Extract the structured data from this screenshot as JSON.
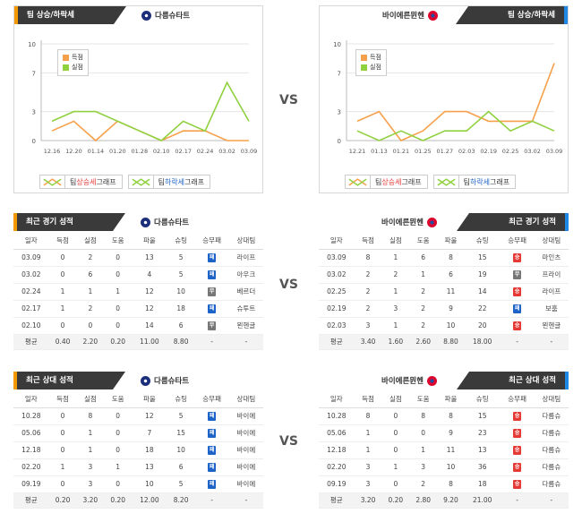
{
  "team_left": "다름슈타트",
  "team_right": "바이에른뮌헨",
  "vs_label": "VS",
  "sections": {
    "trend_title": "팀 상승/하락세",
    "recent_title": "최근 경기 성적",
    "h2h_title": "최근 상대 성적"
  },
  "legend": {
    "score": "득점",
    "conceded": "실점"
  },
  "bottom_legend": {
    "rise_prefix": "팀 ",
    "rise_word": "상승세",
    "rise_suffix": " 그래프",
    "fall_prefix": "팀 ",
    "fall_word": "하락세",
    "fall_suffix": " 그래프"
  },
  "colors": {
    "score": "#f7a04b",
    "conceded": "#8fd13f",
    "win": "#e53935",
    "draw": "#777777",
    "loss": "#1e63c7",
    "accent_left": "#f39800",
    "accent_right": "#1e88e5"
  },
  "table_headers": [
    "일자",
    "득점",
    "실점",
    "도움",
    "파울",
    "슈팅",
    "승무패",
    "상대팀"
  ],
  "chart_data": [
    {
      "type": "line",
      "x": [
        "12.16",
        "12.20",
        "01.14",
        "01.20",
        "01.28",
        "02.10",
        "02.17",
        "02.24",
        "03.02",
        "03.09"
      ],
      "ylim": [
        0,
        10
      ],
      "yticks": [
        0,
        3,
        7,
        10
      ],
      "series": [
        {
          "name": "득점",
          "values": [
            1,
            2,
            0,
            2,
            1,
            0,
            1,
            1,
            0,
            0
          ]
        },
        {
          "name": "실점",
          "values": [
            2,
            3,
            3,
            2,
            1,
            0,
            2,
            1,
            6,
            2
          ]
        }
      ]
    },
    {
      "type": "line",
      "x": [
        "12.21",
        "01.13",
        "01.21",
        "01.25",
        "01.27",
        "02.03",
        "02.19",
        "02.25",
        "03.02",
        "03.09"
      ],
      "ylim": [
        0,
        10
      ],
      "yticks": [
        0,
        3,
        7,
        10
      ],
      "series": [
        {
          "name": "득점",
          "values": [
            2,
            3,
            0,
            1,
            3,
            3,
            2,
            2,
            2,
            8
          ]
        },
        {
          "name": "실점",
          "values": [
            1,
            0,
            1,
            0,
            1,
            1,
            3,
            1,
            2,
            1
          ]
        }
      ]
    }
  ],
  "recent_left": {
    "rows": [
      {
        "date": "03.09",
        "gf": "0",
        "ga": "2",
        "ast": "0",
        "foul": "13",
        "shot": "5",
        "res": "L",
        "res_label": "패",
        "opp": "라이프"
      },
      {
        "date": "03.02",
        "gf": "0",
        "ga": "6",
        "ast": "0",
        "foul": "4",
        "shot": "5",
        "res": "L",
        "res_label": "패",
        "opp": "아우크"
      },
      {
        "date": "02.24",
        "gf": "1",
        "ga": "1",
        "ast": "1",
        "foul": "12",
        "shot": "10",
        "res": "D",
        "res_label": "무",
        "opp": "베르더"
      },
      {
        "date": "02.17",
        "gf": "1",
        "ga": "2",
        "ast": "0",
        "foul": "12",
        "shot": "18",
        "res": "L",
        "res_label": "패",
        "opp": "슈투트"
      },
      {
        "date": "02.10",
        "gf": "0",
        "ga": "0",
        "ast": "0",
        "foul": "14",
        "shot": "6",
        "res": "D",
        "res_label": "무",
        "opp": "묀헨글"
      }
    ],
    "avg": {
      "label": "평균",
      "gf": "0.40",
      "ga": "2.20",
      "ast": "0.20",
      "foul": "11.00",
      "shot": "8.80",
      "res": "-",
      "opp": "-"
    }
  },
  "recent_right": {
    "rows": [
      {
        "date": "03.09",
        "gf": "8",
        "ga": "1",
        "ast": "6",
        "foul": "8",
        "shot": "15",
        "res": "W",
        "res_label": "승",
        "opp": "마인츠"
      },
      {
        "date": "03.02",
        "gf": "2",
        "ga": "2",
        "ast": "1",
        "foul": "6",
        "shot": "19",
        "res": "D",
        "res_label": "무",
        "opp": "프라이"
      },
      {
        "date": "02.25",
        "gf": "2",
        "ga": "1",
        "ast": "2",
        "foul": "11",
        "shot": "14",
        "res": "W",
        "res_label": "승",
        "opp": "라이프"
      },
      {
        "date": "02.19",
        "gf": "2",
        "ga": "3",
        "ast": "2",
        "foul": "9",
        "shot": "22",
        "res": "L",
        "res_label": "패",
        "opp": "보훔"
      },
      {
        "date": "02.03",
        "gf": "3",
        "ga": "1",
        "ast": "2",
        "foul": "10",
        "shot": "20",
        "res": "W",
        "res_label": "승",
        "opp": "묀헨글"
      }
    ],
    "avg": {
      "label": "평균",
      "gf": "3.40",
      "ga": "1.60",
      "ast": "2.60",
      "foul": "8.80",
      "shot": "18.00",
      "res": "-",
      "opp": "-"
    }
  },
  "h2h_left": {
    "rows": [
      {
        "date": "10.28",
        "gf": "0",
        "ga": "8",
        "ast": "0",
        "foul": "12",
        "shot": "5",
        "res": "L",
        "res_label": "패",
        "opp": "바이에"
      },
      {
        "date": "05.06",
        "gf": "0",
        "ga": "1",
        "ast": "0",
        "foul": "7",
        "shot": "15",
        "res": "L",
        "res_label": "패",
        "opp": "바이에"
      },
      {
        "date": "12.18",
        "gf": "0",
        "ga": "1",
        "ast": "0",
        "foul": "18",
        "shot": "10",
        "res": "L",
        "res_label": "패",
        "opp": "바이에"
      },
      {
        "date": "02.20",
        "gf": "1",
        "ga": "3",
        "ast": "1",
        "foul": "13",
        "shot": "6",
        "res": "L",
        "res_label": "패",
        "opp": "바이에"
      },
      {
        "date": "09.19",
        "gf": "0",
        "ga": "3",
        "ast": "0",
        "foul": "10",
        "shot": "5",
        "res": "L",
        "res_label": "패",
        "opp": "바이에"
      }
    ],
    "avg": {
      "label": "평균",
      "gf": "0.20",
      "ga": "3.20",
      "ast": "0.20",
      "foul": "12.00",
      "shot": "8.20",
      "res": "-",
      "opp": "-"
    }
  },
  "h2h_right": {
    "rows": [
      {
        "date": "10.28",
        "gf": "8",
        "ga": "0",
        "ast": "8",
        "foul": "8",
        "shot": "15",
        "res": "W",
        "res_label": "승",
        "opp": "다름슈"
      },
      {
        "date": "05.06",
        "gf": "1",
        "ga": "0",
        "ast": "0",
        "foul": "9",
        "shot": "23",
        "res": "W",
        "res_label": "승",
        "opp": "다름슈"
      },
      {
        "date": "12.18",
        "gf": "1",
        "ga": "0",
        "ast": "1",
        "foul": "11",
        "shot": "13",
        "res": "W",
        "res_label": "승",
        "opp": "다름슈"
      },
      {
        "date": "02.20",
        "gf": "3",
        "ga": "1",
        "ast": "3",
        "foul": "10",
        "shot": "36",
        "res": "W",
        "res_label": "승",
        "opp": "다름슈"
      },
      {
        "date": "09.19",
        "gf": "3",
        "ga": "0",
        "ast": "2",
        "foul": "8",
        "shot": "18",
        "res": "W",
        "res_label": "승",
        "opp": "다름슈"
      }
    ],
    "avg": {
      "label": "평균",
      "gf": "3.20",
      "ga": "0.20",
      "ast": "2.80",
      "foul": "9.20",
      "shot": "21.00",
      "res": "-",
      "opp": "-"
    }
  }
}
